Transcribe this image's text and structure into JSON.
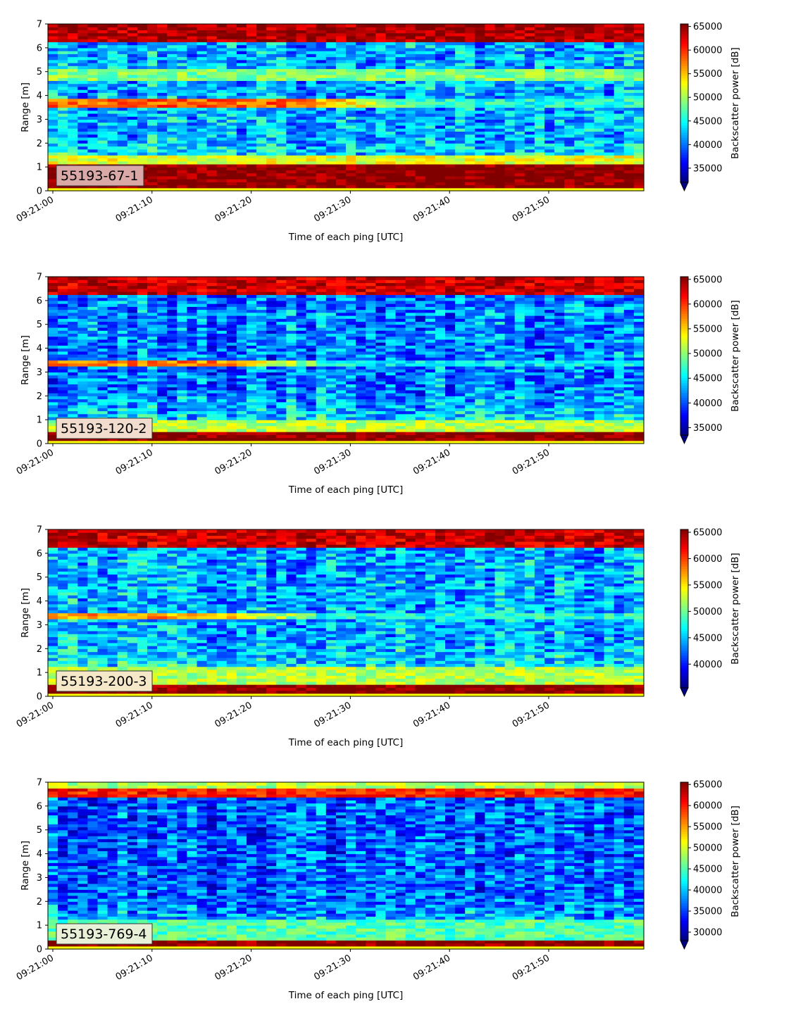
{
  "chart_data": [
    {
      "type": "heatmap",
      "label": "55193-67-1",
      "label_box_color": "#dba8a8",
      "xlabel": "Time of each ping [UTC]",
      "ylabel": "Range [m]",
      "ylim": [
        0,
        7
      ],
      "yticks": [
        "0",
        "1",
        "2",
        "3",
        "4",
        "5",
        "6",
        "7"
      ],
      "xticks": [
        "09:21:00",
        "09:21:10",
        "09:21:20",
        "09:21:30",
        "09:21:40",
        "09:21:50"
      ],
      "x_seconds": [
        0,
        60
      ],
      "colorbar": {
        "label": "Backscatter power [dB]",
        "min": 32000,
        "max": 65535,
        "ticks": [
          "35000",
          "40000",
          "45000",
          "50000",
          "55000",
          "60000",
          "65000"
        ],
        "colormap": "jet"
      },
      "bands": [
        {
          "range_m": [
            0.15,
            1.1
          ],
          "level": 1.0
        },
        {
          "range_m": [
            1.1,
            1.5
          ],
          "level": 0.6
        },
        {
          "range_m": [
            3.5,
            3.9
          ],
          "level": 0.78,
          "fade_after_s": 25
        },
        {
          "range_m": [
            4.6,
            5.1
          ],
          "level": 0.5
        },
        {
          "range_m": [
            6.2,
            7.0
          ],
          "level": 0.95
        }
      ],
      "background_level": 0.3
    },
    {
      "type": "heatmap",
      "label": "55193-120-2",
      "label_box_color": "#f1dccd",
      "xlabel": "Time of each ping [UTC]",
      "ylabel": "Range [m]",
      "ylim": [
        0,
        7
      ],
      "yticks": [
        "0",
        "1",
        "2",
        "3",
        "4",
        "5",
        "6",
        "7"
      ],
      "xticks": [
        "09:21:00",
        "09:21:10",
        "09:21:20",
        "09:21:30",
        "09:21:40",
        "09:21:50"
      ],
      "x_seconds": [
        0,
        60
      ],
      "colorbar": {
        "label": "Backscatter power [dB]",
        "min": 33500,
        "max": 65535,
        "ticks": [
          "35000",
          "40000",
          "45000",
          "50000",
          "55000",
          "60000",
          "65000"
        ],
        "colormap": "jet"
      },
      "bands": [
        {
          "range_m": [
            0.1,
            0.55
          ],
          "level": 1.0
        },
        {
          "range_m": [
            0.55,
            1.0
          ],
          "level": 0.55
        },
        {
          "range_m": [
            3.3,
            3.55
          ],
          "level": 0.75,
          "fade_after_s": 17
        },
        {
          "range_m": [
            6.3,
            7.0
          ],
          "level": 0.92
        }
      ],
      "background_level": 0.25
    },
    {
      "type": "heatmap",
      "label": "55193-200-3",
      "label_box_color": "#f5e8c8",
      "xlabel": "Time of each ping [UTC]",
      "ylabel": "Range [m]",
      "ylim": [
        0,
        7
      ],
      "yticks": [
        "0",
        "1",
        "2",
        "3",
        "4",
        "5",
        "6",
        "7"
      ],
      "xticks": [
        "09:21:00",
        "09:21:10",
        "09:21:20",
        "09:21:30",
        "09:21:40",
        "09:21:50"
      ],
      "x_seconds": [
        0,
        60
      ],
      "colorbar": {
        "label": "Backscatter power [dB]",
        "min": 35500,
        "max": 65535,
        "ticks": [
          "40000",
          "45000",
          "50000",
          "55000",
          "60000",
          "65000"
        ],
        "colormap": "jet"
      },
      "bands": [
        {
          "range_m": [
            0.1,
            0.45
          ],
          "level": 1.0
        },
        {
          "range_m": [
            0.45,
            1.2
          ],
          "level": 0.55
        },
        {
          "range_m": [
            3.3,
            3.55
          ],
          "level": 0.72,
          "fade_after_s": 17
        },
        {
          "range_m": [
            6.3,
            7.0
          ],
          "level": 0.92
        }
      ],
      "background_level": 0.3
    },
    {
      "type": "heatmap",
      "label": "55193-769-4",
      "label_box_color": "#e8f0d8",
      "xlabel": "Time of each ping [UTC]",
      "ylabel": "Range [m]",
      "ylim": [
        0,
        7
      ],
      "yticks": [
        "0",
        "1",
        "2",
        "3",
        "4",
        "5",
        "6",
        "7"
      ],
      "xticks": [
        "09:21:00",
        "09:21:10",
        "09:21:20",
        "09:21:30",
        "09:21:40",
        "09:21:50"
      ],
      "x_seconds": [
        0,
        60
      ],
      "colorbar": {
        "label": "Backscatter power [dB]",
        "min": 28000,
        "max": 65535,
        "ticks": [
          "30000",
          "35000",
          "40000",
          "45000",
          "50000",
          "55000",
          "60000",
          "65000"
        ],
        "colormap": "jet"
      },
      "bands": [
        {
          "range_m": [
            0.15,
            0.35
          ],
          "level": 1.0
        },
        {
          "range_m": [
            0.35,
            1.3
          ],
          "level": 0.45
        },
        {
          "range_m": [
            6.4,
            6.7
          ],
          "level": 0.85
        },
        {
          "range_m": [
            6.7,
            7.0
          ],
          "level": 0.55
        }
      ],
      "background_level": 0.22
    }
  ]
}
